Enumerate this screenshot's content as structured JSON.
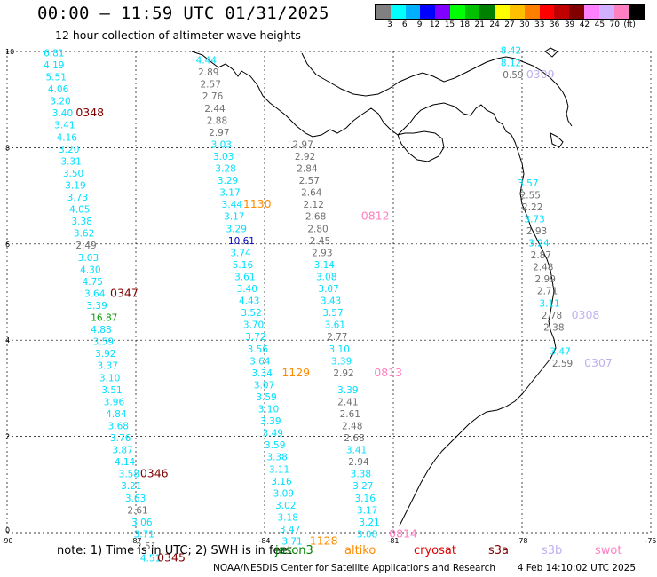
{
  "header": {
    "title": "00:00 — 11:59 UTC 01/31/2025",
    "subtitle": "12 hour collection of altimeter wave heights"
  },
  "scale": {
    "colors": [
      "#808080",
      "#00ffff",
      "#00b0ff",
      "#0000ff",
      "#8000ff",
      "#00ff00",
      "#00c000",
      "#008000",
      "#ffff00",
      "#ffc000",
      "#ff8000",
      "#ff0000",
      "#c00000",
      "#800000",
      "#ff80ff",
      "#d0b0ff",
      "#ff80c0",
      "#000000"
    ],
    "labels": [
      "3",
      "6",
      "9",
      "12",
      "15",
      "18",
      "21",
      "24",
      "27",
      "30",
      "33",
      "36",
      "39",
      "42",
      "45",
      "70",
      "(ft)"
    ]
  },
  "axes": {
    "x_ticks": [
      "-90",
      "-87",
      "-84",
      "-81",
      "-78",
      "-75"
    ],
    "y_ticks": [
      "0",
      "2",
      "4",
      "6",
      "8",
      "10"
    ],
    "corner_label": "0"
  },
  "tracks": [
    {
      "values": [
        {
          "text": "6.81",
          "x": -89.15,
          "y": 9.9,
          "color": "#00e0ff"
        },
        {
          "text": "4.19",
          "x": -89.15,
          "y": 9.65,
          "color": "#00e0ff"
        },
        {
          "text": "5.51",
          "x": -89.1,
          "y": 9.4,
          "color": "#00e0ff"
        },
        {
          "text": "4.06",
          "x": -89.05,
          "y": 9.15,
          "color": "#00e0ff"
        },
        {
          "text": "3.20",
          "x": -89.0,
          "y": 8.9,
          "color": "#00e0ff"
        },
        {
          "text": "3.40",
          "x": -88.95,
          "y": 8.65,
          "color": "#00e0ff"
        },
        {
          "text": "3.41",
          "x": -88.9,
          "y": 8.4,
          "color": "#00e0ff"
        },
        {
          "text": "4.16",
          "x": -88.85,
          "y": 8.15,
          "color": "#00e0ff"
        },
        {
          "text": "3.20",
          "x": -88.8,
          "y": 7.9,
          "color": "#00e0ff"
        },
        {
          "text": "3.31",
          "x": -88.75,
          "y": 7.65,
          "color": "#00e0ff"
        },
        {
          "text": "3.50",
          "x": -88.7,
          "y": 7.4,
          "color": "#00e0ff"
        },
        {
          "text": "3.19",
          "x": -88.65,
          "y": 7.15,
          "color": "#00e0ff"
        },
        {
          "text": "3.73",
          "x": -88.6,
          "y": 6.9,
          "color": "#00e0ff"
        },
        {
          "text": "4.05",
          "x": -88.55,
          "y": 6.65,
          "color": "#00e0ff"
        },
        {
          "text": "3.38",
          "x": -88.5,
          "y": 6.4,
          "color": "#00e0ff"
        },
        {
          "text": "3.62",
          "x": -88.45,
          "y": 6.15,
          "color": "#00e0ff"
        },
        {
          "text": "2.49",
          "x": -88.4,
          "y": 5.9,
          "color": "#707070"
        },
        {
          "text": "3.03",
          "x": -88.35,
          "y": 5.65,
          "color": "#00e0ff"
        },
        {
          "text": "4.30",
          "x": -88.3,
          "y": 5.4,
          "color": "#00e0ff"
        },
        {
          "text": "4.75",
          "x": -88.25,
          "y": 5.15,
          "color": "#00e0ff"
        },
        {
          "text": "3.64",
          "x": -88.2,
          "y": 4.9,
          "color": "#00e0ff"
        },
        {
          "text": "3.39",
          "x": -88.15,
          "y": 4.65,
          "color": "#00e0ff"
        },
        {
          "text": "16.87",
          "x": -88.05,
          "y": 4.4,
          "color": "#00a000"
        },
        {
          "text": "4.88",
          "x": -88.05,
          "y": 4.15,
          "color": "#00e0ff"
        },
        {
          "text": "3.59",
          "x": -88.0,
          "y": 3.9,
          "color": "#00e0ff"
        },
        {
          "text": "3.92",
          "x": -87.95,
          "y": 3.65,
          "color": "#00e0ff"
        },
        {
          "text": "3.37",
          "x": -87.9,
          "y": 3.4,
          "color": "#00e0ff"
        },
        {
          "text": "3.10",
          "x": -87.85,
          "y": 3.15,
          "color": "#00e0ff"
        },
        {
          "text": "3.51",
          "x": -87.8,
          "y": 2.9,
          "color": "#00e0ff"
        },
        {
          "text": "3.96",
          "x": -87.75,
          "y": 2.65,
          "color": "#00e0ff"
        },
        {
          "text": "4.84",
          "x": -87.7,
          "y": 2.4,
          "color": "#00e0ff"
        },
        {
          "text": "3.68",
          "x": -87.65,
          "y": 2.15,
          "color": "#00e0ff"
        },
        {
          "text": "3.76",
          "x": -87.6,
          "y": 1.9,
          "color": "#00e0ff"
        },
        {
          "text": "3.87",
          "x": -87.55,
          "y": 1.65,
          "color": "#00e0ff"
        },
        {
          "text": "4.14",
          "x": -87.5,
          "y": 1.4,
          "color": "#00e0ff"
        },
        {
          "text": "3.58",
          "x": -87.4,
          "y": 1.15,
          "color": "#00e0ff"
        },
        {
          "text": "3.21",
          "x": -87.35,
          "y": 0.9,
          "color": "#00e0ff"
        },
        {
          "text": "3.63",
          "x": -87.25,
          "y": 0.65,
          "color": "#00e0ff"
        },
        {
          "text": "2.61",
          "x": -87.2,
          "y": 0.4,
          "color": "#707070"
        },
        {
          "text": "3.06",
          "x": -87.1,
          "y": 0.15,
          "color": "#00e0ff"
        },
        {
          "text": "3.71",
          "x": -87.05,
          "y": -0.1,
          "color": "#00e0ff"
        },
        {
          "text": "2.51",
          "x": -87.0,
          "y": -0.35,
          "color": "#707070"
        },
        {
          "text": "4.51",
          "x": -86.9,
          "y": -0.6,
          "color": "#00e0ff"
        }
      ],
      "passes": [
        {
          "text": "0348",
          "x": -88.4,
          "y": 8.65,
          "color": "#800000"
        },
        {
          "text": "0347",
          "x": -87.6,
          "y": 4.9,
          "color": "#800000"
        },
        {
          "text": "0346",
          "x": -86.9,
          "y": 1.15,
          "color": "#800000"
        },
        {
          "text": "0345",
          "x": -86.5,
          "y": -0.6,
          "color": "#800000"
        }
      ]
    },
    {
      "values": [
        {
          "text": "4.44",
          "x": -85.6,
          "y": 9.75,
          "color": "#00e0ff"
        },
        {
          "text": "2.89",
          "x": -85.55,
          "y": 9.5,
          "color": "#707070"
        },
        {
          "text": "2.57",
          "x": -85.5,
          "y": 9.25,
          "color": "#707070"
        },
        {
          "text": "2.76",
          "x": -85.45,
          "y": 9.0,
          "color": "#707070"
        },
        {
          "text": "2.44",
          "x": -85.4,
          "y": 8.75,
          "color": "#707070"
        },
        {
          "text": "2.88",
          "x": -85.35,
          "y": 8.5,
          "color": "#707070"
        },
        {
          "text": "2.97",
          "x": -85.3,
          "y": 8.25,
          "color": "#707070"
        },
        {
          "text": "3.03",
          "x": -85.25,
          "y": 8.0,
          "color": "#00e0ff"
        },
        {
          "text": "3.03",
          "x": -85.2,
          "y": 7.75,
          "color": "#00e0ff"
        },
        {
          "text": "3.28",
          "x": -85.15,
          "y": 7.5,
          "color": "#00e0ff"
        },
        {
          "text": "3.29",
          "x": -85.1,
          "y": 7.25,
          "color": "#00e0ff"
        },
        {
          "text": "3.17",
          "x": -85.05,
          "y": 7.0,
          "color": "#00e0ff"
        },
        {
          "text": "3.44",
          "x": -85.0,
          "y": 6.75,
          "color": "#00e0ff"
        },
        {
          "text": "3.17",
          "x": -84.95,
          "y": 6.5,
          "color": "#00e0ff"
        },
        {
          "text": "3.29",
          "x": -84.9,
          "y": 6.25,
          "color": "#00e0ff"
        },
        {
          "text": "10.61",
          "x": -84.85,
          "y": 6.0,
          "color": "#0000c0"
        },
        {
          "text": "3.74",
          "x": -84.8,
          "y": 5.75,
          "color": "#00e0ff"
        },
        {
          "text": "5.16",
          "x": -84.75,
          "y": 5.5,
          "color": "#00e0ff"
        },
        {
          "text": "3.61",
          "x": -84.7,
          "y": 5.25,
          "color": "#00e0ff"
        },
        {
          "text": "3.40",
          "x": -84.65,
          "y": 5.0,
          "color": "#00e0ff"
        },
        {
          "text": "4.43",
          "x": -84.6,
          "y": 4.75,
          "color": "#00e0ff"
        },
        {
          "text": "3.52",
          "x": -84.55,
          "y": 4.5,
          "color": "#00e0ff"
        },
        {
          "text": "3.70",
          "x": -84.5,
          "y": 4.25,
          "color": "#00e0ff"
        },
        {
          "text": "3.72",
          "x": -84.45,
          "y": 4.0,
          "color": "#00e0ff"
        },
        {
          "text": "3.56",
          "x": -84.4,
          "y": 3.75,
          "color": "#00e0ff"
        },
        {
          "text": "3.64",
          "x": -84.35,
          "y": 3.5,
          "color": "#00e0ff"
        },
        {
          "text": "3.34",
          "x": -84.3,
          "y": 3.25,
          "color": "#00e0ff"
        },
        {
          "text": "3.07",
          "x": -84.25,
          "y": 3.0,
          "color": "#00e0ff"
        },
        {
          "text": "3.59",
          "x": -84.2,
          "y": 2.75,
          "color": "#00e0ff"
        },
        {
          "text": "3.10",
          "x": -84.15,
          "y": 2.5,
          "color": "#00e0ff"
        },
        {
          "text": "3.39",
          "x": -84.1,
          "y": 2.25,
          "color": "#00e0ff"
        },
        {
          "text": "3.49",
          "x": -84.05,
          "y": 2.0,
          "color": "#00e0ff"
        },
        {
          "text": "3.59",
          "x": -84.0,
          "y": 1.75,
          "color": "#00e0ff"
        },
        {
          "text": "3.38",
          "x": -83.95,
          "y": 1.5,
          "color": "#00e0ff"
        },
        {
          "text": "3.11",
          "x": -83.9,
          "y": 1.25,
          "color": "#00e0ff"
        },
        {
          "text": "3.16",
          "x": -83.85,
          "y": 1.0,
          "color": "#00e0ff"
        },
        {
          "text": "3.09",
          "x": -83.8,
          "y": 0.75,
          "color": "#00e0ff"
        },
        {
          "text": "3.02",
          "x": -83.75,
          "y": 0.5,
          "color": "#00e0ff"
        },
        {
          "text": "3.18",
          "x": -83.7,
          "y": 0.25,
          "color": "#00e0ff"
        },
        {
          "text": "3.47",
          "x": -83.65,
          "y": 0.0,
          "color": "#00e0ff"
        },
        {
          "text": "3.71",
          "x": -83.6,
          "y": -0.25,
          "color": "#00e0ff"
        }
      ],
      "passes": [
        {
          "text": "1130",
          "x": -84.5,
          "y": 6.75,
          "color": "#ff8c00"
        },
        {
          "text": "1129",
          "x": -83.6,
          "y": 3.25,
          "color": "#ff8c00"
        },
        {
          "text": "1128",
          "x": -82.95,
          "y": -0.25,
          "color": "#ff8c00"
        }
      ]
    },
    {
      "values": [
        {
          "text": "2.97",
          "x": -83.35,
          "y": 8.0,
          "color": "#707070"
        },
        {
          "text": "2.92",
          "x": -83.3,
          "y": 7.75,
          "color": "#707070"
        },
        {
          "text": "2.84",
          "x": -83.25,
          "y": 7.5,
          "color": "#707070"
        },
        {
          "text": "2.57",
          "x": -83.2,
          "y": 7.25,
          "color": "#707070"
        },
        {
          "text": "2.64",
          "x": -83.15,
          "y": 7.0,
          "color": "#707070"
        },
        {
          "text": "2.12",
          "x": -83.1,
          "y": 6.75,
          "color": "#707070"
        },
        {
          "text": "2.68",
          "x": -83.05,
          "y": 6.5,
          "color": "#707070"
        },
        {
          "text": "2.80",
          "x": -83.0,
          "y": 6.25,
          "color": "#707070"
        },
        {
          "text": "2.45",
          "x": -82.95,
          "y": 6.0,
          "color": "#707070"
        },
        {
          "text": "2.93",
          "x": -82.9,
          "y": 5.75,
          "color": "#707070"
        },
        {
          "text": "3.14",
          "x": -82.85,
          "y": 5.5,
          "color": "#00e0ff"
        },
        {
          "text": "3.08",
          "x": -82.8,
          "y": 5.25,
          "color": "#00e0ff"
        },
        {
          "text": "3.07",
          "x": -82.75,
          "y": 5.0,
          "color": "#00e0ff"
        },
        {
          "text": "3.43",
          "x": -82.7,
          "y": 4.75,
          "color": "#00e0ff"
        },
        {
          "text": "3.57",
          "x": -82.65,
          "y": 4.5,
          "color": "#00e0ff"
        },
        {
          "text": "3.61",
          "x": -82.6,
          "y": 4.25,
          "color": "#00e0ff"
        },
        {
          "text": "2.77",
          "x": -82.55,
          "y": 4.0,
          "color": "#707070"
        },
        {
          "text": "3.10",
          "x": -82.5,
          "y": 3.75,
          "color": "#00e0ff"
        },
        {
          "text": "3.39",
          "x": -82.45,
          "y": 3.5,
          "color": "#00e0ff"
        },
        {
          "text": "2.92",
          "x": -82.4,
          "y": 3.25,
          "color": "#707070"
        },
        {
          "text": "3.39",
          "x": -82.3,
          "y": 2.9,
          "color": "#00e0ff"
        },
        {
          "text": "2.41",
          "x": -82.3,
          "y": 2.65,
          "color": "#707070"
        },
        {
          "text": "2.61",
          "x": -82.25,
          "y": 2.4,
          "color": "#707070"
        },
        {
          "text": "2.48",
          "x": -82.2,
          "y": 2.15,
          "color": "#707070"
        },
        {
          "text": "2.68",
          "x": -82.15,
          "y": 1.9,
          "color": "#707070"
        },
        {
          "text": "3.41",
          "x": -82.1,
          "y": 1.65,
          "color": "#00e0ff"
        },
        {
          "text": "2.94",
          "x": -82.05,
          "y": 1.4,
          "color": "#707070"
        },
        {
          "text": "3.38",
          "x": -82.0,
          "y": 1.15,
          "color": "#00e0ff"
        },
        {
          "text": "3.27",
          "x": -81.95,
          "y": 0.9,
          "color": "#00e0ff"
        },
        {
          "text": "3.16",
          "x": -81.9,
          "y": 0.65,
          "color": "#00e0ff"
        },
        {
          "text": "3.17",
          "x": -81.85,
          "y": 0.4,
          "color": "#00e0ff"
        },
        {
          "text": "3.21",
          "x": -81.8,
          "y": 0.15,
          "color": "#00e0ff"
        },
        {
          "text": "3.08",
          "x": -81.85,
          "y": -0.1,
          "color": "#00e0ff"
        }
      ],
      "passes": [
        {
          "text": "0812",
          "x": -81.75,
          "y": 6.5,
          "color": "#ff80c0"
        },
        {
          "text": "0813",
          "x": -81.45,
          "y": 3.25,
          "color": "#ff80c0"
        },
        {
          "text": "0814",
          "x": -81.1,
          "y": -0.1,
          "color": "#ff80c0"
        }
      ]
    },
    {
      "values": [
        {
          "text": "8.42",
          "x": -78.5,
          "y": 9.95,
          "color": "#00e0ff"
        },
        {
          "text": "8.12",
          "x": -78.5,
          "y": 9.7,
          "color": "#00e0ff"
        },
        {
          "text": "0.59",
          "x": -78.45,
          "y": 9.45,
          "color": "#707070"
        },
        {
          "text": "3.57",
          "x": -78.1,
          "y": 7.2,
          "color": "#00e0ff"
        },
        {
          "text": "2.55",
          "x": -78.05,
          "y": 6.95,
          "color": "#707070"
        },
        {
          "text": "2.22",
          "x": -78.0,
          "y": 6.7,
          "color": "#707070"
        },
        {
          "text": "3.73",
          "x": -77.95,
          "y": 6.45,
          "color": "#00e0ff"
        },
        {
          "text": "2.93",
          "x": -77.9,
          "y": 6.2,
          "color": "#707070"
        },
        {
          "text": "3.24",
          "x": -77.85,
          "y": 5.95,
          "color": "#00e0ff"
        },
        {
          "text": "2.87",
          "x": -77.8,
          "y": 5.7,
          "color": "#707070"
        },
        {
          "text": "2.48",
          "x": -77.75,
          "y": 5.45,
          "color": "#707070"
        },
        {
          "text": "2.99",
          "x": -77.7,
          "y": 5.2,
          "color": "#707070"
        },
        {
          "text": "2.71",
          "x": -77.65,
          "y": 4.95,
          "color": "#707070"
        },
        {
          "text": "3.11",
          "x": -77.6,
          "y": 4.7,
          "color": "#00e0ff"
        },
        {
          "text": "2.78",
          "x": -77.55,
          "y": 4.45,
          "color": "#707070"
        },
        {
          "text": "2.38",
          "x": -77.5,
          "y": 4.2,
          "color": "#707070"
        },
        {
          "text": "3.47",
          "x": -77.35,
          "y": 3.7,
          "color": "#00e0ff"
        },
        {
          "text": "2.59",
          "x": -77.3,
          "y": 3.45,
          "color": "#707070"
        }
      ],
      "passes": [
        {
          "text": "0309",
          "x": -77.9,
          "y": 9.45,
          "color": "#c0b0f0"
        },
        {
          "text": "0308",
          "x": -76.85,
          "y": 4.45,
          "color": "#c0b0f0"
        },
        {
          "text": "0307",
          "x": -76.55,
          "y": 3.45,
          "color": "#c0b0f0"
        }
      ]
    }
  ],
  "footer": {
    "note_text": "note: 1) Time is in UTC; 2) SWH is in feet",
    "sources": [
      {
        "name": "jason3",
        "color": "#008000"
      },
      {
        "name": "altiko",
        "color": "#ff8c00"
      },
      {
        "name": "cryosat",
        "color": "#e00000"
      },
      {
        "name": "s3a",
        "color": "#800000"
      },
      {
        "name": "s3b",
        "color": "#c0b0f0"
      },
      {
        "name": "swot",
        "color": "#ff80c0"
      }
    ],
    "credit": "NOAA/NESDIS Center for Satellite Applications and Research",
    "timestamp": "4 Feb 14:10:02 UTC 2025"
  }
}
